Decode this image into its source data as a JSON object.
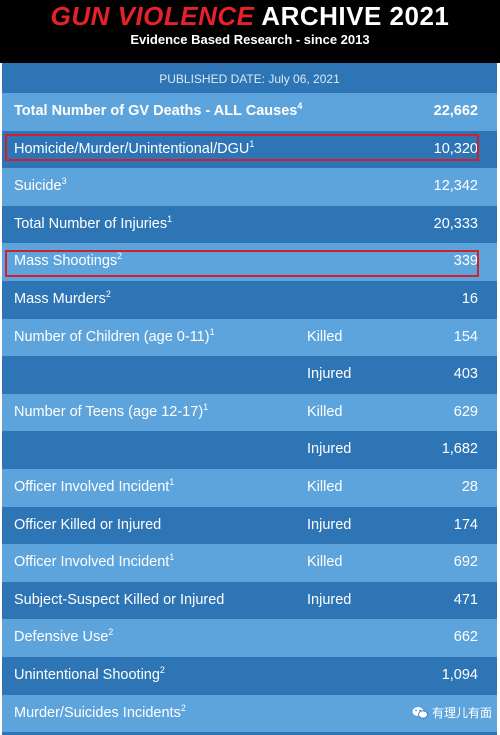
{
  "banner": {
    "title_part1": "GUN VIOLENCE",
    "title_part2": "ARCHIVE 2021",
    "subtitle": "Evidence Based Research - since 2013"
  },
  "published_date": "PUBLISHED DATE: July 06, 2021",
  "rows": [
    {
      "label": "Total Number of GV Deaths - ALL Causes",
      "sup": "4",
      "mid": "",
      "value": "22,662",
      "bold": true,
      "shade": "light"
    },
    {
      "label": "Homicide/Murder/Unintentional/DGU",
      "sup": "1",
      "mid": "",
      "value": "10,320",
      "bold": false,
      "shade": "dark",
      "highlighted": true
    },
    {
      "label": "Suicide",
      "sup": "3",
      "mid": "",
      "value": "12,342",
      "bold": false,
      "shade": "light"
    },
    {
      "label": "Total Number of Injuries",
      "sup": "1",
      "mid": "",
      "value": "20,333",
      "bold": false,
      "shade": "dark"
    },
    {
      "label": "Mass Shootings",
      "sup": "2",
      "mid": "",
      "value": "339",
      "bold": false,
      "shade": "light",
      "highlighted": true
    },
    {
      "label": "Mass Murders",
      "sup": "2",
      "mid": "",
      "value": "16",
      "bold": false,
      "shade": "dark"
    },
    {
      "label": "Number of Children (age 0-11)",
      "sup": "1",
      "mid": "Killed",
      "value": "154",
      "bold": false,
      "shade": "light"
    },
    {
      "label": "",
      "sup": "",
      "mid": "Injured",
      "value": "403",
      "bold": false,
      "shade": "dark"
    },
    {
      "label": "Number of Teens (age 12-17)",
      "sup": "1",
      "mid": "Killed",
      "value": "629",
      "bold": false,
      "shade": "light"
    },
    {
      "label": "",
      "sup": "",
      "mid": "Injured",
      "value": "1,682",
      "bold": false,
      "shade": "dark"
    },
    {
      "label": "Officer Involved Incident",
      "sup": "1",
      "mid": "Killed",
      "value": "28",
      "bold": false,
      "shade": "light"
    },
    {
      "label": "Officer Killed or Injured",
      "sup": "",
      "mid": "Injured",
      "value": "174",
      "bold": false,
      "shade": "dark"
    },
    {
      "label": "Officer Involved Incident",
      "sup": "1",
      "mid": "Killed",
      "value": "692",
      "bold": false,
      "shade": "light"
    },
    {
      "label": "Subject-Suspect Killed or Injured",
      "sup": "",
      "mid": "Injured",
      "value": "471",
      "bold": false,
      "shade": "dark"
    },
    {
      "label": "Defensive Use",
      "sup": "2",
      "mid": "",
      "value": "662",
      "bold": false,
      "shade": "light"
    },
    {
      "label": "Unintentional Shooting",
      "sup": "2",
      "mid": "",
      "value": "1,094",
      "bold": false,
      "shade": "dark"
    },
    {
      "label": "Murder/Suicides Incidents",
      "sup": "2",
      "mid": "",
      "value": "",
      "bold": false,
      "shade": "light"
    }
  ],
  "watermark": {
    "text": "有理儿有面",
    "icon": "wechat-icon"
  },
  "colors": {
    "banner_bg": "#000000",
    "title_red": "#e8202a",
    "row_light": "#5ea4dc",
    "row_dark": "#2e75b6",
    "highlight_border": "#d02030"
  }
}
